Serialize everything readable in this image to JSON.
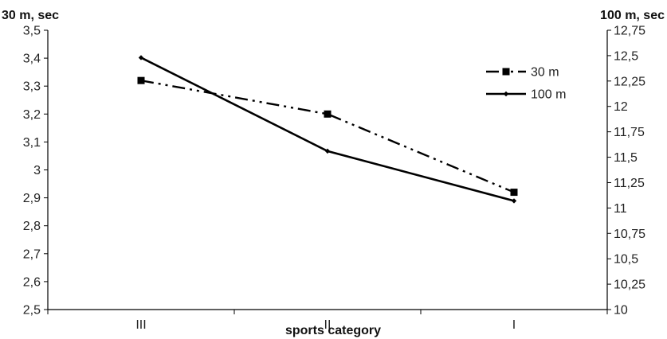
{
  "chart_data": {
    "type": "line",
    "categories": [
      "III",
      "II",
      "I"
    ],
    "xlabel": "sports category",
    "y_left": {
      "label": "30 m, sec",
      "range": [
        2.5,
        3.5
      ],
      "ticks": [
        "2,5",
        "2,6",
        "2,7",
        "2,8",
        "2,9",
        "3",
        "3,1",
        "3,2",
        "3,3",
        "3,4",
        "3,5"
      ]
    },
    "y_right": {
      "label": "100 m, sec",
      "range": [
        10,
        12.75
      ],
      "ticks": [
        "10",
        "10,25",
        "10,5",
        "10,75",
        "11",
        "11,25",
        "11,5",
        "11,75",
        "12",
        "12,25",
        "12,5",
        "12,75"
      ]
    },
    "series": [
      {
        "name": "30 m",
        "axis": "left",
        "values": [
          3.32,
          3.2,
          2.92
        ],
        "style": "dash-dot",
        "marker": "square",
        "color": "#000000"
      },
      {
        "name": "100 m",
        "axis": "right",
        "values": [
          12.48,
          11.56,
          11.07
        ],
        "style": "solid",
        "marker": "small-diamond",
        "color": "#000000"
      }
    ],
    "legend_position": "top-right",
    "grid": false
  }
}
